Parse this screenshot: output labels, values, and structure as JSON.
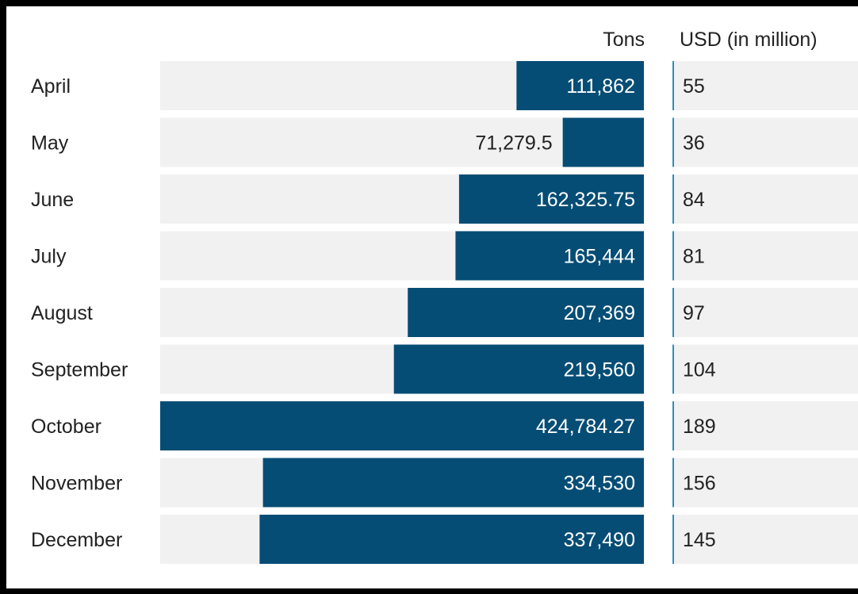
{
  "colors": {
    "bar": "#064d75",
    "track": "#f1f1f1",
    "usd_accent": "#2f8fb8",
    "text_dark": "#222222",
    "text_light": "#ffffff"
  },
  "chart_data": {
    "type": "bar",
    "orientation": "horizontal",
    "bar_direction": "right-to-left",
    "categories": [
      "April",
      "May",
      "June",
      "July",
      "August",
      "September",
      "October",
      "November",
      "December"
    ],
    "columns": [
      "Tons",
      "USD (in million)"
    ],
    "series": [
      {
        "name": "Tons",
        "values": [
          111862,
          71279.5,
          162325.75,
          165444,
          207369,
          219560,
          424784.27,
          334530,
          337490
        ],
        "labels": [
          "111,862",
          "71,279.5",
          "162,325.75",
          "165,444",
          "207,369",
          "219,560",
          "424,784.27",
          "334,530",
          "337,490"
        ]
      },
      {
        "name": "USD (in million)",
        "values": [
          55,
          36,
          84,
          81,
          97,
          104,
          189,
          156,
          145
        ],
        "labels": [
          "55",
          "36",
          "84",
          "81",
          "97",
          "104",
          "189",
          "156",
          "145"
        ]
      }
    ],
    "xlim": [
      0,
      424784.27
    ],
    "grid": false,
    "legend": "none"
  }
}
